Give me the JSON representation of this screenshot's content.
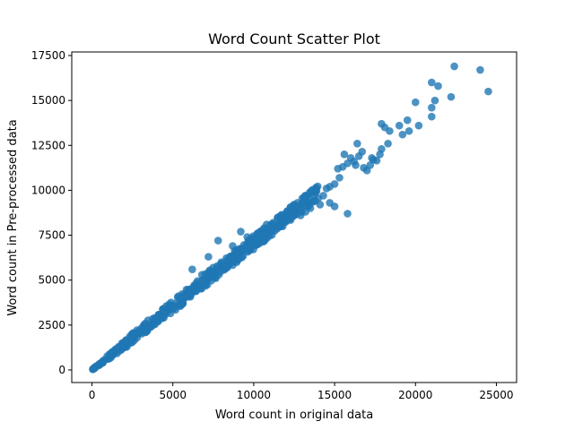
{
  "chart_data": {
    "type": "scatter",
    "title": "Word Count Scatter Plot",
    "xlabel": "Word count in original data",
    "ylabel": "Word count in Pre-processed data",
    "xlim": [
      -1250,
      26250
    ],
    "ylim": [
      -700,
      17700
    ],
    "xticks": [
      0,
      5000,
      10000,
      15000,
      20000,
      25000
    ],
    "yticks": [
      0,
      2500,
      5000,
      7500,
      10000,
      12500,
      15000,
      17500
    ],
    "grid": false,
    "color": "#1f77b4",
    "alpha": 0.8,
    "trend": {
      "description": "dense band along near-linear relation",
      "points": [
        [
          0,
          0
        ],
        [
          1000,
          700
        ],
        [
          2000,
          1400
        ],
        [
          3000,
          2150
        ],
        [
          4000,
          2850
        ],
        [
          5000,
          3550
        ],
        [
          6000,
          4250
        ],
        [
          7000,
          5000
        ],
        [
          8000,
          5700
        ],
        [
          9000,
          6400
        ],
        [
          10000,
          7100
        ],
        [
          11000,
          7800
        ],
        [
          12000,
          8500
        ],
        [
          13000,
          9200
        ],
        [
          14000,
          9950
        ]
      ],
      "spread": [
        0,
        120,
        220,
        280,
        300,
        320,
        340,
        350,
        360,
        370,
        380,
        380,
        380,
        390,
        400
      ]
    },
    "points": [
      [
        15000,
        10350
      ],
      [
        14700,
        10200
      ],
      [
        15300,
        10700
      ],
      [
        15500,
        11300
      ],
      [
        15200,
        11200
      ],
      [
        15800,
        11500
      ],
      [
        16000,
        11800
      ],
      [
        16300,
        11400
      ],
      [
        16500,
        11900
      ],
      [
        16800,
        11250
      ],
      [
        17000,
        11100
      ],
      [
        17200,
        11400
      ],
      [
        17400,
        11700
      ],
      [
        17600,
        11650
      ],
      [
        17800,
        12000
      ],
      [
        17900,
        12300
      ],
      [
        16400,
        12600
      ],
      [
        15600,
        12000
      ],
      [
        18300,
        12600
      ],
      [
        17900,
        13700
      ],
      [
        18100,
        13500
      ],
      [
        18400,
        13300
      ],
      [
        19000,
        13600
      ],
      [
        19200,
        13100
      ],
      [
        19500,
        13900
      ],
      [
        19600,
        13300
      ],
      [
        20200,
        13600
      ],
      [
        20000,
        14900
      ],
      [
        21000,
        14600
      ],
      [
        21000,
        14100
      ],
      [
        21200,
        15000
      ],
      [
        21000,
        16000
      ],
      [
        21400,
        15800
      ],
      [
        22200,
        15200
      ],
      [
        22400,
        16900
      ],
      [
        24000,
        16700
      ],
      [
        24500,
        15500
      ],
      [
        13800,
        9400
      ],
      [
        14300,
        9700
      ],
      [
        14700,
        9300
      ],
      [
        15000,
        9100
      ],
      [
        15800,
        8700
      ],
      [
        14500,
        10100
      ],
      [
        13000,
        9550
      ],
      [
        12700,
        9300
      ],
      [
        12000,
        8700
      ],
      [
        11500,
        8500
      ],
      [
        10000,
        7200
      ],
      [
        9000,
        6600
      ],
      [
        8700,
        6900
      ],
      [
        7800,
        7200
      ],
      [
        7200,
        6300
      ],
      [
        6200,
        5600
      ],
      [
        5700,
        4000
      ],
      [
        6800,
        5300
      ],
      [
        9200,
        7700
      ],
      [
        10300,
        7500
      ],
      [
        11200,
        8200
      ],
      [
        12400,
        8900
      ],
      [
        13200,
        8800
      ],
      [
        4500,
        3300
      ],
      [
        3200,
        2500
      ],
      [
        2500,
        2000
      ],
      [
        9600,
        7400
      ],
      [
        8000,
        6000
      ],
      [
        10800,
        8100
      ],
      [
        13500,
        9000
      ],
      [
        14100,
        9200
      ],
      [
        12900,
        8600
      ],
      [
        11800,
        8300
      ],
      [
        7500,
        5700
      ],
      [
        16200,
        11600
      ],
      [
        16700,
        12150
      ],
      [
        17300,
        11800
      ]
    ]
  }
}
